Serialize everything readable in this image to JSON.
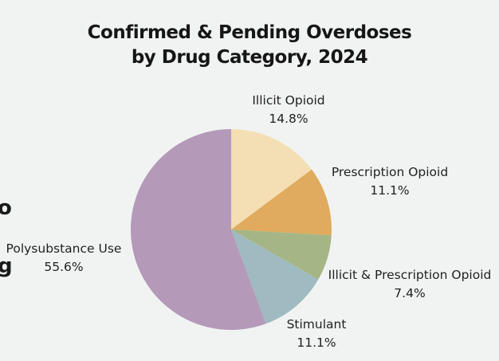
{
  "page": {
    "background_color": "#f1f3f2",
    "title_line1": "Confirmed & Pending Overdoses",
    "title_line2": "by Drug Category, 2024"
  },
  "chart_data": {
    "type": "pie",
    "title": "Confirmed & Pending Overdoses by Drug Category, 2024",
    "start_angle_deg": 0,
    "direction": "clockwise",
    "legend_position": "labels-around-pie",
    "slices": [
      {
        "label": "Illicit Opioid",
        "value_pct": 14.8,
        "display_pct": "14.8%",
        "color": "#F4DFB4"
      },
      {
        "label": "Prescription Opioid",
        "value_pct": 11.1,
        "display_pct": "11.1%",
        "color": "#E0AB5E"
      },
      {
        "label": "Illicit & Prescription Opioid",
        "value_pct": 7.4,
        "display_pct": "7.4%",
        "color": "#A6B585"
      },
      {
        "label": "Stimulant",
        "value_pct": 11.1,
        "display_pct": "11.1%",
        "color": "#9FBAC0"
      },
      {
        "label": "Polysubstance Use",
        "value_pct": 55.6,
        "display_pct": "55.6%",
        "color": "#B499B9"
      }
    ]
  },
  "edge_fragments": {
    "top_left_text": "o",
    "bottom_left_text": "g"
  }
}
